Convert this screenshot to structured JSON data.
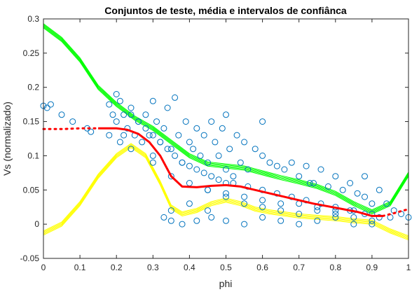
{
  "chart_data": {
    "type": "scatter",
    "title": "Conjuntos de teste, média e intervalos de confiânca",
    "xlabel": "phi",
    "ylabel": "Vs  (normalizado)",
    "xlim": [
      0,
      1
    ],
    "ylim": [
      -0.05,
      0.3
    ],
    "xticks": [
      "0",
      "0.1",
      "0.2",
      "0.3",
      "0.4",
      "0.5",
      "0.6",
      "0.7",
      "0.8",
      "0.9",
      "1"
    ],
    "yticks": [
      "-0.05",
      "0",
      "0.05",
      "0.1",
      "0.15",
      "0.2",
      "0.25",
      "0.3"
    ],
    "grid": false,
    "colors": {
      "scatter": "#0072BD",
      "mean": "#FF0000",
      "upper": "#00FF00",
      "lower": "#FFFF00",
      "axis": "#262626"
    },
    "scatter": {
      "x": [
        0.0,
        0.01,
        0.02,
        0.05,
        0.08,
        0.12,
        0.13,
        0.18,
        0.18,
        0.19,
        0.2,
        0.2,
        0.21,
        0.21,
        0.22,
        0.22,
        0.23,
        0.24,
        0.24,
        0.25,
        0.26,
        0.27,
        0.28,
        0.29,
        0.3,
        0.3,
        0.31,
        0.32,
        0.33,
        0.34,
        0.35,
        0.36,
        0.37,
        0.38,
        0.39,
        0.4,
        0.41,
        0.42,
        0.43,
        0.44,
        0.45,
        0.46,
        0.47,
        0.48,
        0.49,
        0.5,
        0.5,
        0.51,
        0.52,
        0.53,
        0.54,
        0.55,
        0.56,
        0.58,
        0.6,
        0.62,
        0.64,
        0.66,
        0.68,
        0.7,
        0.72,
        0.74,
        0.76,
        0.78,
        0.8,
        0.82,
        0.84,
        0.86,
        0.88,
        0.9,
        0.92,
        0.94,
        0.96,
        0.98,
        1.0,
        0.33,
        0.35,
        0.38,
        0.42,
        0.46,
        0.5,
        0.55,
        0.6,
        0.65,
        0.7,
        0.75,
        0.8,
        0.85,
        0.9,
        0.95,
        0.4,
        0.45,
        0.5,
        0.55,
        0.6,
        0.65,
        0.7,
        0.75,
        0.8,
        0.85,
        0.3,
        0.35,
        0.4,
        0.45,
        0.5,
        0.55,
        0.6,
        0.65,
        0.7,
        0.75,
        0.8,
        0.85,
        0.9,
        0.24,
        0.26,
        0.28,
        0.3,
        0.32,
        0.34,
        0.36,
        0.38,
        0.4,
        0.42,
        0.44,
        0.46,
        0.48,
        0.52,
        0.56,
        0.6,
        0.64,
        0.68,
        0.72,
        0.76,
        0.8,
        0.84,
        0.88,
        0.92,
        0.73,
        0.88,
        0.9,
        0.6,
        0.5,
        0.45,
        0.35
      ],
      "y": [
        0.173,
        0.17,
        0.175,
        0.16,
        0.15,
        0.14,
        0.135,
        0.175,
        0.13,
        0.16,
        0.19,
        0.15,
        0.18,
        0.12,
        0.16,
        0.13,
        0.14,
        0.11,
        0.16,
        0.13,
        0.15,
        0.12,
        0.16,
        0.13,
        0.18,
        0.1,
        0.15,
        0.12,
        0.14,
        0.17,
        0.11,
        0.185,
        0.13,
        0.09,
        0.15,
        0.12,
        0.11,
        0.14,
        0.1,
        0.13,
        0.09,
        0.15,
        0.12,
        0.1,
        0.14,
        0.08,
        0.16,
        0.11,
        0.07,
        0.13,
        0.09,
        0.12,
        0.08,
        0.11,
        0.1,
        0.09,
        0.085,
        0.08,
        0.09,
        0.07,
        0.085,
        0.06,
        0.08,
        0.055,
        0.07,
        0.05,
        0.06,
        0.045,
        0.04,
        0.03,
        0.05,
        0.03,
        0.02,
        0.015,
        0.01,
        0.01,
        0.005,
        0.0,
        0.005,
        0.01,
        0.005,
        0.0,
        0.01,
        0.005,
        0.0,
        0.005,
        0.01,
        0.0,
        0.005,
        0.01,
        0.03,
        0.02,
        0.04,
        0.03,
        0.025,
        0.02,
        0.015,
        0.02,
        0.015,
        0.01,
        0.09,
        0.07,
        0.06,
        0.05,
        0.045,
        0.04,
        0.035,
        0.03,
        0.03,
        0.025,
        0.02,
        0.02,
        0.015,
        0.17,
        0.15,
        0.14,
        0.13,
        0.12,
        0.11,
        0.1,
        0.09,
        0.085,
        0.08,
        0.075,
        0.07,
        0.065,
        0.06,
        0.055,
        0.05,
        0.045,
        0.04,
        0.035,
        0.03,
        0.025,
        0.02,
        0.015,
        0.01,
        0.06,
        0.07,
        0.0,
        0.15,
        0.06,
        0.05,
        0.02
      ]
    },
    "series": [
      {
        "role": "mean",
        "style": "dotted-then-solid",
        "x": [
          0.0,
          0.05,
          0.1,
          0.15,
          0.2,
          0.23,
          0.26,
          0.29,
          0.32,
          0.35,
          0.38,
          0.42,
          0.46,
          0.5,
          0.54,
          0.58,
          0.62,
          0.66,
          0.7,
          0.74,
          0.78,
          0.82,
          0.86,
          0.9,
          0.93,
          0.96,
          1.0
        ],
        "y": [
          0.139,
          0.139,
          0.14,
          0.14,
          0.14,
          0.138,
          0.132,
          0.12,
          0.1,
          0.07,
          0.055,
          0.054,
          0.056,
          0.057,
          0.055,
          0.05,
          0.045,
          0.04,
          0.035,
          0.03,
          0.026,
          0.022,
          0.018,
          0.012,
          0.012,
          0.016,
          0.022
        ]
      },
      {
        "role": "upper",
        "style": "band",
        "x": [
          0.0,
          0.05,
          0.1,
          0.15,
          0.2,
          0.25,
          0.3,
          0.35,
          0.4,
          0.45,
          0.5,
          0.55,
          0.6,
          0.65,
          0.7,
          0.75,
          0.8,
          0.85,
          0.9,
          0.95,
          1.0
        ],
        "y": [
          0.29,
          0.27,
          0.24,
          0.2,
          0.175,
          0.155,
          0.14,
          0.12,
          0.1,
          0.088,
          0.085,
          0.082,
          0.075,
          0.068,
          0.062,
          0.055,
          0.045,
          0.03,
          0.018,
          0.03,
          0.073
        ]
      },
      {
        "role": "lower",
        "style": "band",
        "x": [
          0.0,
          0.05,
          0.1,
          0.15,
          0.2,
          0.24,
          0.28,
          0.32,
          0.35,
          0.38,
          0.42,
          0.46,
          0.5,
          0.54,
          0.58,
          0.62,
          0.66,
          0.7,
          0.75,
          0.8,
          0.85,
          0.9,
          0.95,
          1.0
        ],
        "y": [
          -0.013,
          0.0,
          0.03,
          0.07,
          0.1,
          0.115,
          0.1,
          0.06,
          0.025,
          0.015,
          0.02,
          0.03,
          0.035,
          0.03,
          0.022,
          0.018,
          0.015,
          0.012,
          0.01,
          0.008,
          0.005,
          0.003,
          -0.01,
          -0.02
        ]
      }
    ]
  }
}
